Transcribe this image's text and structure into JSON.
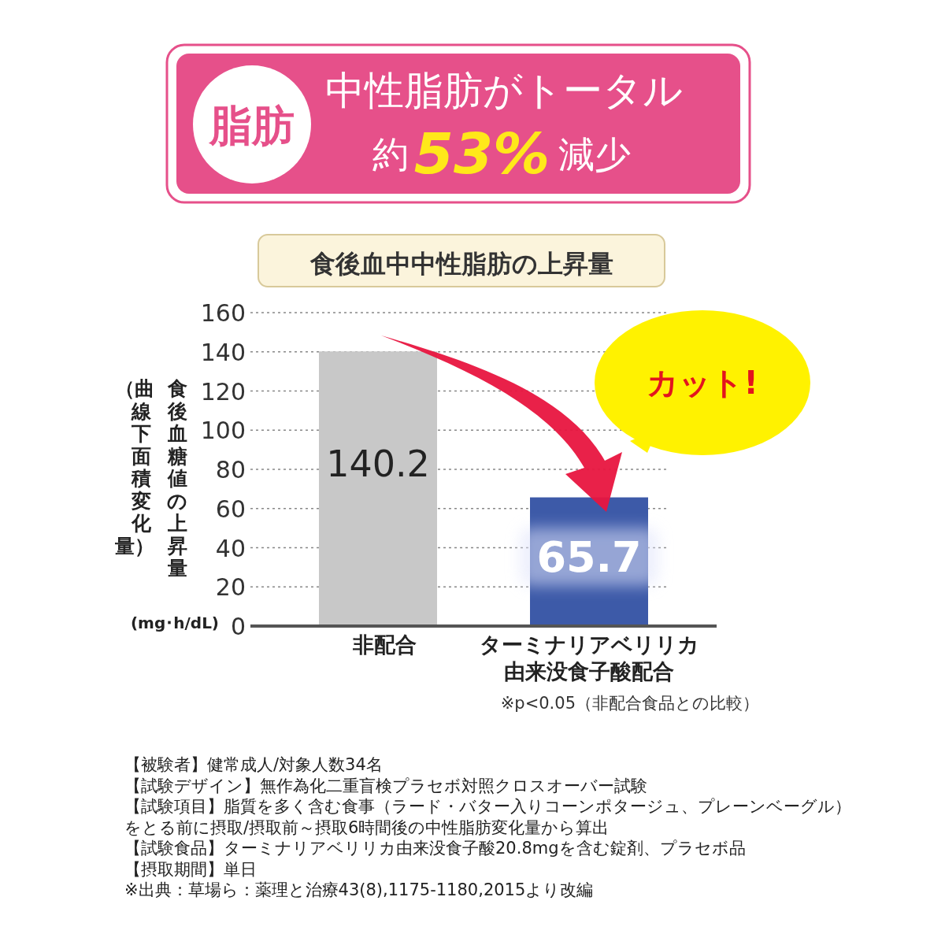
{
  "chart_data": {
    "type": "bar",
    "title": "食後血中中性脂肪の上昇量",
    "ylabel": "食後血糖値の上昇量（曲線下面積変化量）",
    "categories": [
      "非配合",
      "ターミナリアベリリカ由来没食子酸配合"
    ],
    "values": [
      140.2,
      65.7
    ],
    "colors": [
      "#c8c8c8",
      "#3d5aa8"
    ],
    "ylim": [
      0,
      160
    ],
    "yticks": [
      0,
      20,
      40,
      60,
      80,
      100,
      120,
      140,
      160
    ],
    "grid": "y",
    "data_labels": true,
    "annotations": [
      "脂肪",
      "中性脂肪がトータル",
      "約",
      "53%",
      "減少",
      "カット!",
      "(mg･h/dL)",
      "※p<0.05（非配合食品との比較）",
      "【被験者】健常成人/対象人数34名",
      "【試験デザイン】無作為化二重盲検プラセボ対照クロスオーバー試験",
      "【試験項目】脂質を多く含む食事（ラード・バター入りコーンポタージュ、プレーンベーグル）",
      "をとる前に摂取/摂取前～摂取6時間後の中性脂肪変化量から算出",
      "【試験食品】ターミナリアベリリカ由来没食子酸20.8mgを含む錠剤、プラセボ品",
      "【摂取期間】単日",
      "※出典：草場ら：薬理と治療43(8),1175-1180,2015より改編"
    ]
  }
}
